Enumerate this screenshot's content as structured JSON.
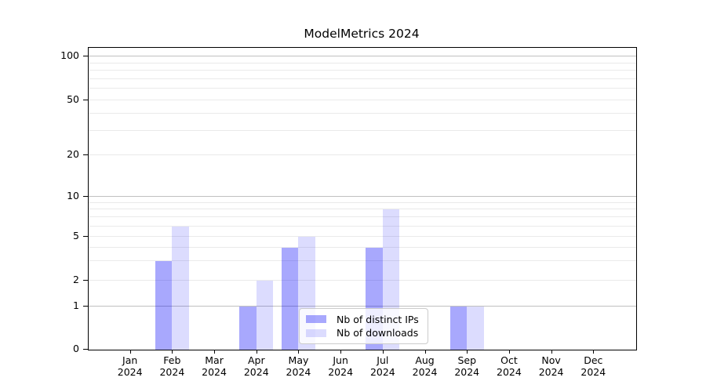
{
  "chart_data": {
    "type": "bar",
    "title": "ModelMetrics 2024",
    "categories": [
      "Jan 2024",
      "Feb 2024",
      "Mar 2024",
      "Apr 2024",
      "May 2024",
      "Jun 2024",
      "Jul 2024",
      "Aug 2024",
      "Sep 2024",
      "Oct 2024",
      "Nov 2024",
      "Dec 2024"
    ],
    "series": [
      {
        "name": "Nb of distinct IPs",
        "color": "#0000fa",
        "alpha": 0.34,
        "effective_color": "#aaaaf8",
        "values": [
          0,
          3,
          0,
          1,
          4,
          0,
          4,
          0,
          1,
          0,
          0,
          0
        ]
      },
      {
        "name": "Nb of downloads",
        "color": "#0808f5",
        "alpha": 0.14,
        "effective_color": "#dcdcf9",
        "values": [
          0,
          6,
          0,
          2,
          5,
          0,
          8,
          0,
          1,
          0,
          0,
          0
        ]
      }
    ],
    "xlabel": "",
    "ylabel": "",
    "yscale": "asinh-like: linear from 0 to 1, logarithmic above 1",
    "ytick_labels": [
      0,
      1,
      2,
      5,
      10,
      20,
      50,
      100
    ],
    "major_grid_values": [
      1,
      10,
      100
    ],
    "minor_grid_values": [
      2,
      3,
      4,
      5,
      6,
      7,
      8,
      9,
      20,
      30,
      40,
      50,
      60,
      70,
      80,
      90
    ],
    "ylim": [
      0,
      115
    ],
    "grid": true,
    "legend_position": "lower center"
  },
  "colors": {
    "major_grid": "#c0c0c0",
    "minor_grid": "#eaeaea",
    "axis": "#000000",
    "text": "#000000",
    "legend_border": "#cccccc"
  }
}
